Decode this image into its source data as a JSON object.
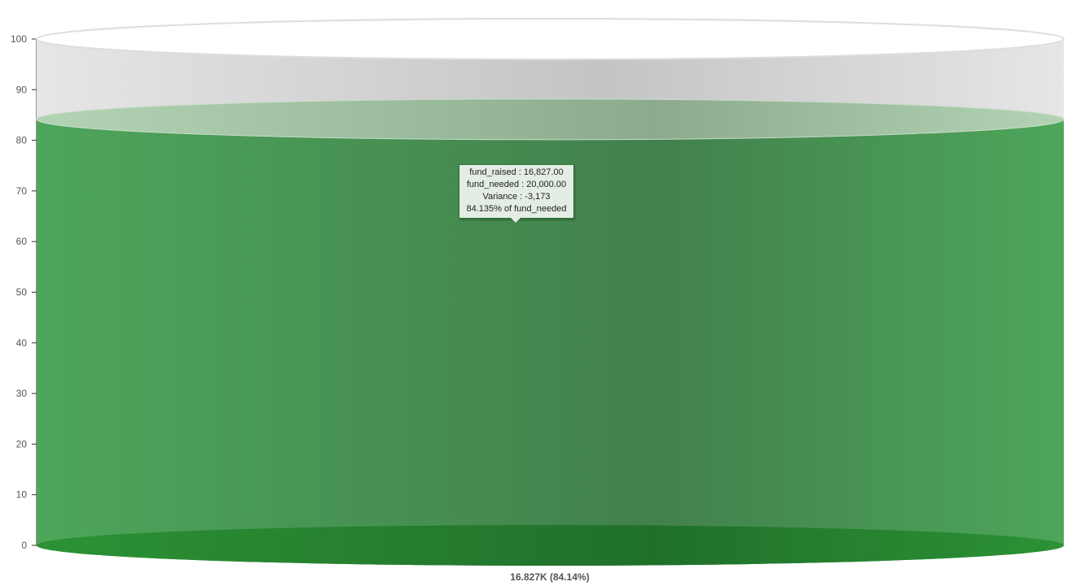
{
  "chart_data": {
    "type": "cylinder-gauge",
    "value": 16827,
    "value_label": "16.827K (84.14%)",
    "percent": 84.135,
    "ylim": [
      0,
      100
    ],
    "y_ticks": [
      "0",
      "10",
      "20",
      "30",
      "40",
      "50",
      "60",
      "70",
      "80",
      "90",
      "100"
    ],
    "fill_color": "#4caf50",
    "tooltip": [
      "fund_raised : 16,827.00",
      "fund_needed : 20,000.00",
      "Variance : -3,173",
      "84.135% of fund_needed"
    ]
  }
}
